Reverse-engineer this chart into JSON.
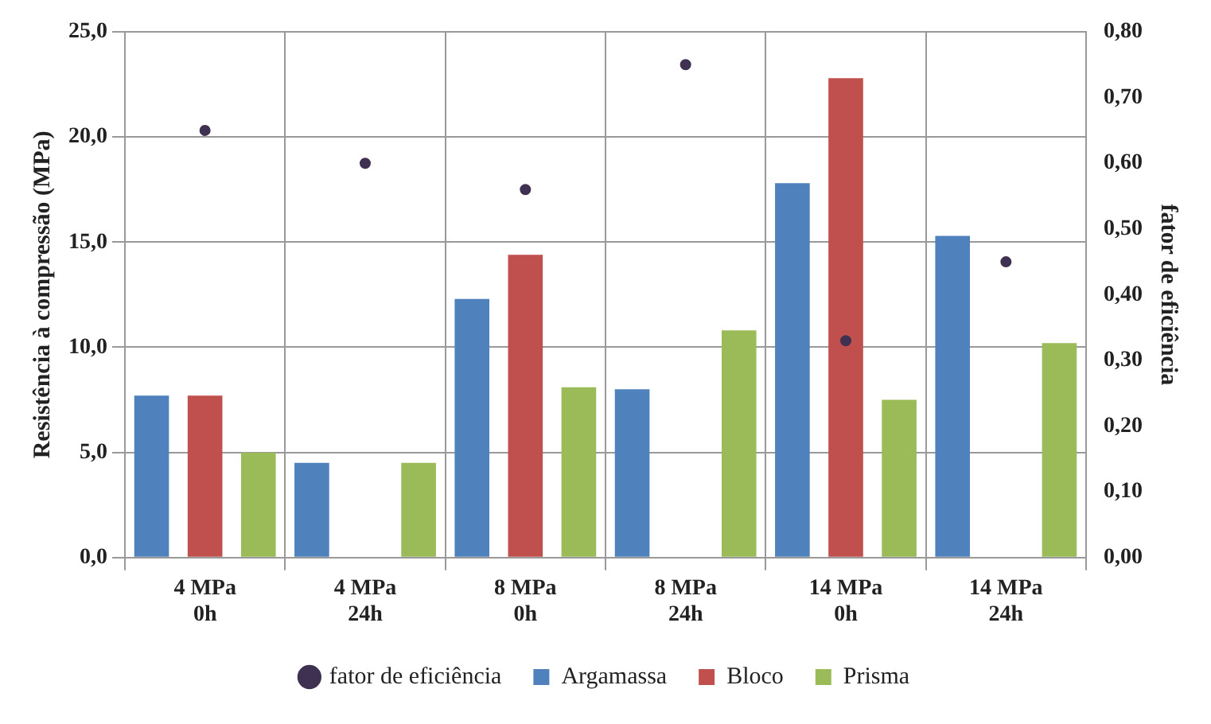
{
  "chart_data": {
    "type": "bar",
    "ylabel": "Resistência à compressão (MPa)",
    "y2label": "fator de eficiência",
    "categories": [
      "4 MPa 0h",
      "4 MPa 24h",
      "8 MPa 0h",
      "8 MPa 24h",
      "14 MPa 0h",
      "14 MPa 24h"
    ],
    "series": [
      {
        "name": "Argamassa",
        "color": "#4f81bd",
        "values": [
          7.7,
          4.5,
          12.3,
          8.0,
          17.8,
          15.3
        ]
      },
      {
        "name": "Bloco",
        "color": "#c0504d",
        "values": [
          7.7,
          null,
          14.4,
          null,
          22.8,
          null
        ]
      },
      {
        "name": "Prisma",
        "color": "#9bbb59",
        "values": [
          5.0,
          4.5,
          8.1,
          10.8,
          7.5,
          10.2
        ]
      },
      {
        "name": "fator de eficiência",
        "type": "scatter",
        "axis": "y2",
        "color": "#3f3151",
        "values": [
          0.65,
          0.6,
          0.56,
          0.75,
          0.33,
          0.45
        ]
      }
    ],
    "ylim": [
      0,
      25
    ],
    "yticks": [
      {
        "value": 0,
        "label": "0,0"
      },
      {
        "value": 5,
        "label": "5,0"
      },
      {
        "value": 10,
        "label": "10,0"
      },
      {
        "value": 15,
        "label": "15,0"
      },
      {
        "value": 20,
        "label": "20,0"
      },
      {
        "value": 25,
        "label": "25,0"
      }
    ],
    "y2lim": [
      0,
      0.8
    ],
    "y2ticks": [
      {
        "value": 0,
        "label": "0,00"
      },
      {
        "value": 0.1,
        "label": "0,10"
      },
      {
        "value": 0.2,
        "label": "0,20"
      },
      {
        "value": 0.3,
        "label": "0,30"
      },
      {
        "value": 0.4,
        "label": "0,40"
      },
      {
        "value": 0.5,
        "label": "0,50"
      },
      {
        "value": 0.6,
        "label": "0,60"
      },
      {
        "value": 0.7,
        "label": "0,70"
      },
      {
        "value": 0.8,
        "label": "0,80"
      }
    ],
    "grid": true,
    "legend": "bottom",
    "marker": "circle"
  }
}
